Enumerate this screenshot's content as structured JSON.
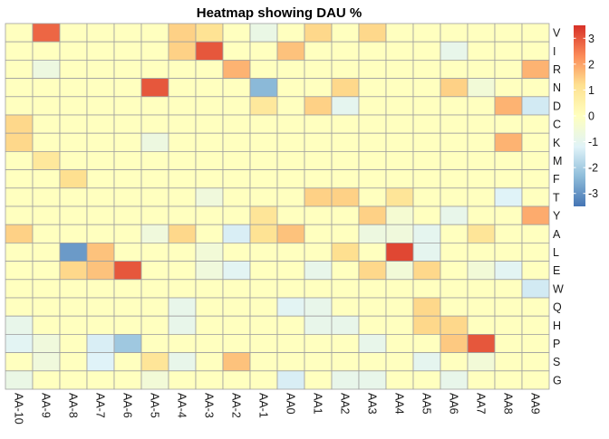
{
  "chart_data": {
    "type": "heatmap",
    "title": "Heatmap showing DAU %",
    "columns": [
      "AA-10",
      "AA-9",
      "AA-8",
      "AA-7",
      "AA-6",
      "AA-5",
      "AA-4",
      "AA-3",
      "AA-2",
      "AA-1",
      "AA0",
      "AA1",
      "AA2",
      "AA3",
      "AA4",
      "AA5",
      "AA6",
      "AA7",
      "AA8",
      "AA9"
    ],
    "rows": [
      "V",
      "I",
      "R",
      "N",
      "D",
      "C",
      "K",
      "M",
      "F",
      "T",
      "Y",
      "A",
      "L",
      "E",
      "W",
      "Q",
      "H",
      "P",
      "S",
      "G"
    ],
    "values": [
      [
        0,
        2.8,
        0,
        0,
        0,
        0,
        1.4,
        1.1,
        0,
        -0.8,
        0,
        1.3,
        0,
        1.3,
        0,
        0,
        0,
        0,
        0,
        0
      ],
      [
        0,
        0,
        0,
        0,
        0,
        0,
        1.4,
        3.0,
        0,
        0,
        1.6,
        0,
        0,
        0,
        0,
        0,
        -0.9,
        0,
        0,
        0
      ],
      [
        0,
        -0.7,
        0,
        0,
        0,
        0,
        0,
        0,
        1.8,
        0,
        0,
        0,
        0,
        0,
        0,
        0,
        0,
        0,
        0,
        1.8
      ],
      [
        0,
        0,
        0,
        0,
        0,
        3.0,
        0,
        0,
        0,
        -2.4,
        0,
        0,
        1.3,
        0,
        0,
        0,
        1.4,
        -0.5,
        0,
        0
      ],
      [
        0,
        0,
        0,
        0,
        0,
        0,
        0,
        0,
        0,
        0.9,
        0,
        1.4,
        -1.0,
        0,
        0,
        0,
        0,
        0,
        1.8,
        -1.4
      ],
      [
        1.3,
        0,
        0,
        0,
        0,
        0,
        0,
        0,
        0,
        0,
        0,
        0,
        0,
        0,
        0,
        0,
        0,
        0,
        0,
        0
      ],
      [
        1.3,
        0,
        0,
        0,
        0,
        -0.7,
        0,
        0,
        0,
        0,
        0,
        0,
        0,
        0,
        0,
        0,
        0,
        0,
        1.8,
        0
      ],
      [
        0,
        0.9,
        0,
        0,
        0,
        0,
        0,
        0,
        0,
        0,
        0,
        0,
        0,
        0,
        0,
        0,
        0,
        0,
        0,
        0
      ],
      [
        0,
        0,
        1.2,
        0,
        0,
        0,
        0,
        0,
        0,
        0,
        0,
        0,
        0,
        0,
        0,
        0,
        0,
        0,
        0,
        0
      ],
      [
        0,
        0,
        0,
        0,
        0,
        0,
        0,
        -0.6,
        0,
        0,
        0,
        1.4,
        1.4,
        0,
        1.0,
        0,
        0,
        0,
        -1.2,
        0
      ],
      [
        0,
        0,
        0,
        0,
        0,
        0,
        0,
        0,
        0,
        1.0,
        0,
        0,
        0,
        1.4,
        -0.4,
        0,
        -0.9,
        0,
        0,
        1.9
      ],
      [
        1.4,
        0,
        0,
        0,
        0,
        -0.6,
        1.3,
        0,
        -1.3,
        1.1,
        1.6,
        0,
        0,
        -0.7,
        -0.6,
        -1.0,
        0,
        1.0,
        0,
        0
      ],
      [
        0,
        0,
        -2.9,
        1.6,
        0,
        0,
        0,
        -0.5,
        0,
        0,
        0,
        0,
        1.2,
        0,
        3.2,
        -1.0,
        0,
        0,
        0,
        0
      ],
      [
        0,
        0,
        1.3,
        1.6,
        3.0,
        0,
        0,
        -0.6,
        -1.1,
        0,
        0,
        -0.9,
        0,
        1.3,
        -0.5,
        1.3,
        0,
        -0.5,
        -1.1,
        0
      ],
      [
        0,
        0,
        0,
        0,
        0,
        0,
        0,
        0,
        0,
        0,
        0,
        0,
        0,
        0,
        0,
        0,
        0,
        0,
        0,
        -1.4
      ],
      [
        0,
        0,
        0,
        0,
        0,
        0,
        -0.9,
        0,
        0,
        0,
        -1.1,
        -0.9,
        0,
        0,
        0,
        1.3,
        0,
        0,
        0,
        0
      ],
      [
        -0.9,
        0,
        0,
        0,
        0,
        0,
        -0.9,
        0,
        0,
        0,
        0,
        -0.9,
        -0.9,
        0,
        0,
        1.3,
        1.3,
        0,
        0,
        0
      ],
      [
        -1.1,
        -0.6,
        0,
        -1.3,
        -2.1,
        0,
        0,
        0,
        0,
        0,
        0,
        0,
        0,
        -0.9,
        0,
        0,
        1.5,
        3.0,
        0,
        0
      ],
      [
        0,
        -0.6,
        0,
        -1.2,
        0,
        1.0,
        -0.9,
        0,
        1.6,
        0,
        0,
        0,
        0,
        0,
        0,
        -1.0,
        0,
        -0.5,
        0,
        0
      ],
      [
        -0.8,
        0,
        0,
        0,
        0,
        -0.5,
        0,
        0,
        0,
        0,
        -1.3,
        0,
        -0.9,
        -0.9,
        0,
        0,
        -0.9,
        0,
        0,
        0
      ]
    ],
    "legend": {
      "ticks": [
        3,
        2,
        1,
        0,
        -1,
        -2,
        -3
      ],
      "range": [
        -3.5,
        3.5
      ],
      "placement": "right"
    },
    "colors": {
      "high": "#d73027",
      "mid_high": "#fc8d59",
      "light_high": "#fee090",
      "neutral": "#ffffbf",
      "light_low": "#e0f3f8",
      "mid_low": "#91bfdb",
      "low": "#4575b4",
      "cell_border": "#a0a0a0"
    }
  }
}
